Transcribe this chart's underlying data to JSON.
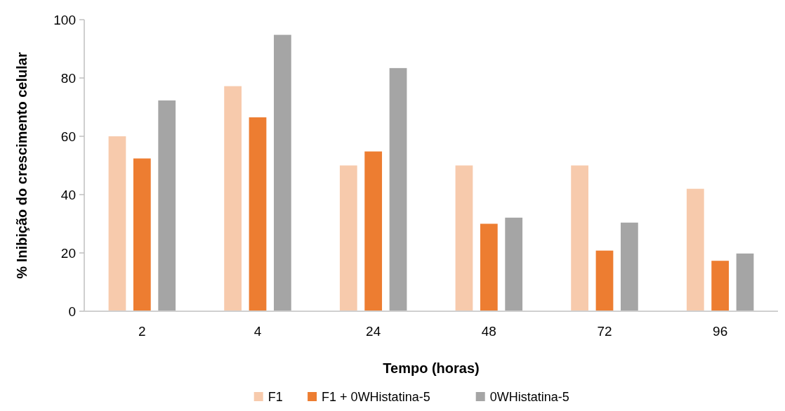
{
  "chart_data": {
    "type": "bar",
    "xlabel": "Tempo (horas)",
    "ylabel": "% Inibição do crescimento celular",
    "categories": [
      "2",
      "4",
      "24",
      "48",
      "72",
      "96"
    ],
    "series": [
      {
        "name": "F1",
        "color": "#f7caac",
        "values": [
          60,
          77.2,
          50,
          50,
          50,
          42
        ]
      },
      {
        "name": "F1 + 0WHistatina-5",
        "color": "#ed7d31",
        "values": [
          52.4,
          66.5,
          54.8,
          30,
          20.8,
          17.3
        ]
      },
      {
        "name": "0WHistatina-5",
        "color": "#a5a5a5",
        "values": [
          72.3,
          94.8,
          83.4,
          32.1,
          30.4,
          19.8
        ]
      }
    ],
    "ylim": [
      0,
      100
    ],
    "yticks": [
      0,
      20,
      40,
      60,
      80,
      100
    ],
    "legend": "bottom"
  }
}
